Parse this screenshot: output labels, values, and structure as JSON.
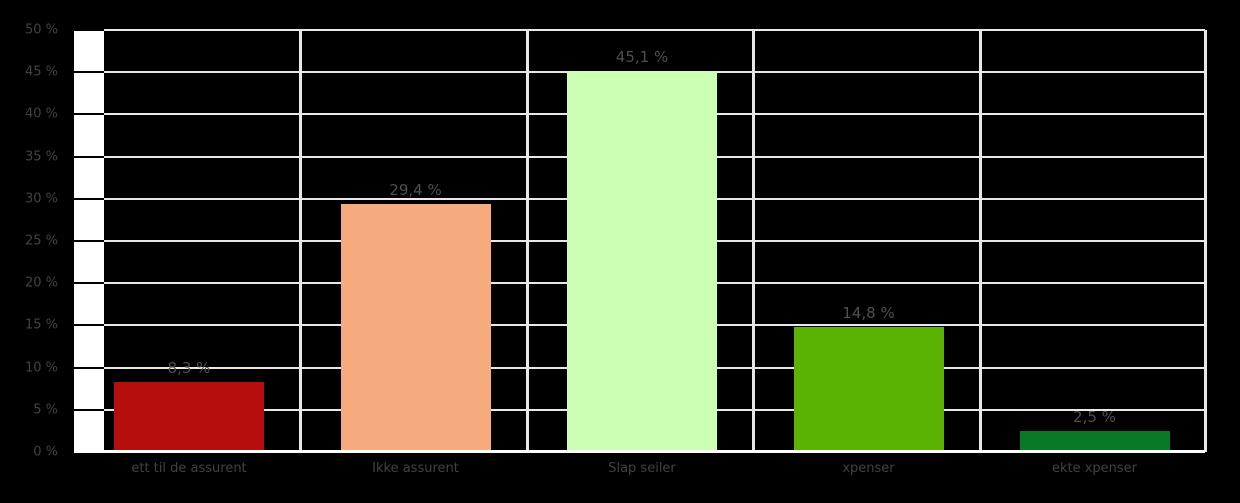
{
  "chart_data": {
    "type": "bar",
    "title": "",
    "xlabel": "",
    "ylabel": "",
    "categories": [
      "ett til de assurent",
      "Ikke assurent",
      "Slap seiler",
      "xpenser",
      "ekte xpenser"
    ],
    "values": [
      8.3,
      29.4,
      45.1,
      14.8,
      2.5
    ],
    "value_labels": [
      "8,3 %",
      "29,4 %",
      "45,1 %",
      "14,8 %",
      "2,5 %"
    ],
    "bar_colors": [
      "#b60d0d",
      "#f5ab7d",
      "#ccffb3",
      "#5ab303",
      "#087a26"
    ],
    "ylim": [
      0,
      50
    ],
    "ytick_step": 5,
    "ytick_labels": [
      "0 %",
      "5 %",
      "10 %",
      "15 %",
      "20 %",
      "25 %",
      "30 %",
      "35 %",
      "40 %",
      "45 %",
      "50 %"
    ],
    "grid": true,
    "legend": "none",
    "colors": {
      "background": "#000000",
      "gridline": "#e8e8e8",
      "axis_wall": "#ffffff",
      "tick_text": "#424242",
      "value_text": "#4f4f4f"
    }
  }
}
